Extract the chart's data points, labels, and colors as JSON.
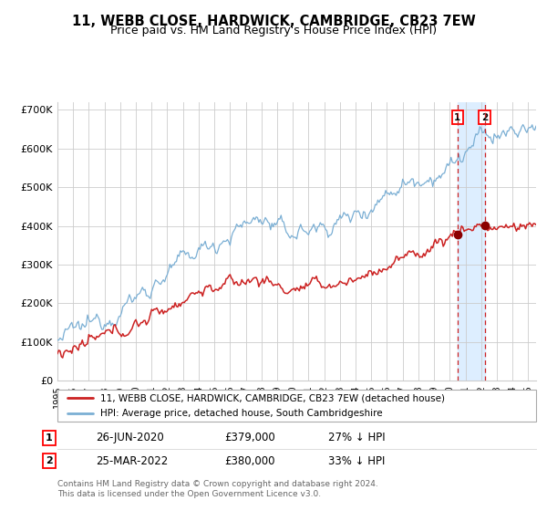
{
  "title": "11, WEBB CLOSE, HARDWICK, CAMBRIDGE, CB23 7EW",
  "subtitle": "Price paid vs. HM Land Registry's House Price Index (HPI)",
  "hpi_color": "#7bafd4",
  "price_color": "#cc2222",
  "dot_color": "#8b0000",
  "shade_color": "#ddeeff",
  "vline_color": "#cc2222",
  "grid_color": "#cccccc",
  "ylim": [
    0,
    720000
  ],
  "yticks": [
    0,
    100000,
    200000,
    300000,
    400000,
    500000,
    600000,
    700000
  ],
  "ytick_labels": [
    "£0",
    "£100K",
    "£200K",
    "£300K",
    "£400K",
    "£500K",
    "£600K",
    "£700K"
  ],
  "sale1_date": 2020.49,
  "sale1_price": 379000,
  "sale2_date": 2022.22,
  "sale2_price": 380000,
  "legend_line1": "11, WEBB CLOSE, HARDWICK, CAMBRIDGE, CB23 7EW (detached house)",
  "legend_line2": "HPI: Average price, detached house, South Cambridgeshire",
  "table_row1": [
    "1",
    "26-JUN-2020",
    "£379,000",
    "27% ↓ HPI"
  ],
  "table_row2": [
    "2",
    "25-MAR-2022",
    "£380,000",
    "33% ↓ HPI"
  ],
  "footnote": "Contains HM Land Registry data © Crown copyright and database right 2024.\nThis data is licensed under the Open Government Licence v3.0.",
  "xmin": 1995,
  "xmax": 2025.5
}
